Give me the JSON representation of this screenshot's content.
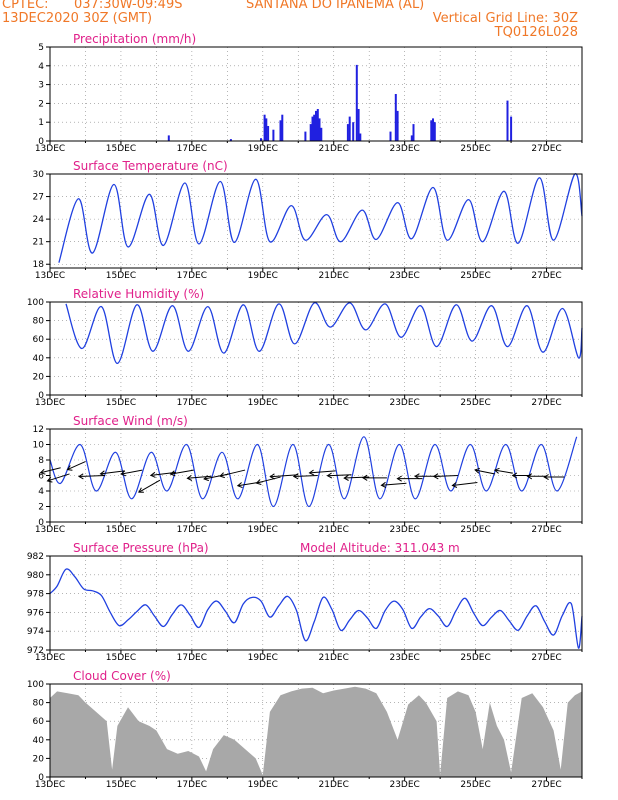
{
  "header": {
    "line1_left": "CPTEC:",
    "line1_coords": "037:30W-09:49S",
    "line1_place": "SANTANA DO IPANEMA (AL)",
    "line2_left": "13DEC2020 30Z (GMT)",
    "line2_right": "Vertical Grid Line: 30Z",
    "line3_right": "TQ0126L028"
  },
  "x_labels": [
    "13DEC",
    "15DEC",
    "17DEC",
    "19DEC",
    "21DEC",
    "23DEC",
    "25DEC",
    "27DEC"
  ],
  "colors": {
    "header": "#f07828",
    "title": "#e0208a",
    "series": "#2040e0",
    "bar": "#2020e0",
    "cloud": "#a8a8a8",
    "vector": "#000000"
  },
  "panels": [
    {
      "id": "precip",
      "title": "Precipitation (mm/h)",
      "extra": ""
    },
    {
      "id": "temp",
      "title": "Surface Temperature (nC)",
      "extra": ""
    },
    {
      "id": "rh",
      "title": "Relative Humidity (%)",
      "extra": ""
    },
    {
      "id": "wind",
      "title": "Surface Wind (m/s)",
      "extra": ""
    },
    {
      "id": "pres",
      "title": "Surface Pressure (hPa)",
      "extra": "Model Altitude: 311.043 m"
    },
    {
      "id": "cloud",
      "title": "Cloud Cover (%)",
      "extra": ""
    }
  ],
  "chart_data": [
    {
      "type": "bar",
      "title": "Precipitation (mm/h)",
      "ylim": [
        0,
        5
      ],
      "yticks": [
        0,
        1,
        2,
        3,
        4,
        5
      ],
      "x_unit": "day offset from 13DEC 00Z",
      "xlim": [
        0,
        15
      ],
      "points": [
        [
          3.35,
          0.3
        ],
        [
          5.1,
          0.1
        ],
        [
          5.95,
          0.15
        ],
        [
          6.05,
          1.4
        ],
        [
          6.1,
          1.2
        ],
        [
          6.15,
          0.8
        ],
        [
          6.3,
          0.6
        ],
        [
          6.5,
          1.1
        ],
        [
          6.55,
          1.4
        ],
        [
          7.2,
          0.5
        ],
        [
          7.35,
          0.9
        ],
        [
          7.4,
          1.3
        ],
        [
          7.45,
          1.4
        ],
        [
          7.5,
          1.6
        ],
        [
          7.55,
          1.7
        ],
        [
          7.6,
          1.2
        ],
        [
          7.65,
          0.7
        ],
        [
          8.4,
          0.9
        ],
        [
          8.45,
          1.3
        ],
        [
          8.55,
          1.0
        ],
        [
          8.65,
          4.05
        ],
        [
          8.7,
          1.7
        ],
        [
          8.75,
          0.4
        ],
        [
          9.6,
          0.5
        ],
        [
          9.75,
          2.5
        ],
        [
          9.8,
          1.6
        ],
        [
          10.2,
          0.3
        ],
        [
          10.25,
          0.9
        ],
        [
          10.75,
          1.1
        ],
        [
          10.8,
          1.2
        ],
        [
          10.85,
          1.0
        ],
        [
          12.9,
          2.15
        ],
        [
          13.0,
          1.3
        ]
      ]
    },
    {
      "type": "line",
      "title": "Surface Temperature (nC)",
      "ylim": [
        17.5,
        30
      ],
      "yticks": [
        18,
        21,
        24,
        27,
        30
      ],
      "minima": [
        [
          0.25,
          18.2
        ],
        [
          1.2,
          19.5
        ],
        [
          2.2,
          20.3
        ],
        [
          3.2,
          20.5
        ],
        [
          4.2,
          20.7
        ],
        [
          5.2,
          20.9
        ],
        [
          6.2,
          21.0
        ],
        [
          7.2,
          21.2
        ],
        [
          8.2,
          21.0
        ],
        [
          9.2,
          21.3
        ],
        [
          10.2,
          21.4
        ],
        [
          11.2,
          21.2
        ],
        [
          12.2,
          21.0
        ],
        [
          13.2,
          20.8
        ],
        [
          14.2,
          21.2
        ]
      ],
      "maxima": [
        [
          0.8,
          26.7
        ],
        [
          1.8,
          28.6
        ],
        [
          2.8,
          27.3
        ],
        [
          3.8,
          28.8
        ],
        [
          4.8,
          29.0
        ],
        [
          5.8,
          29.3
        ],
        [
          6.8,
          25.8
        ],
        [
          7.8,
          24.6
        ],
        [
          8.8,
          25.2
        ],
        [
          9.8,
          26.2
        ],
        [
          10.8,
          28.2
        ],
        [
          11.8,
          26.6
        ],
        [
          12.8,
          27.7
        ],
        [
          13.8,
          29.5
        ],
        [
          14.8,
          30.0
        ]
      ],
      "end": [
        15.0,
        24.4
      ]
    },
    {
      "type": "line",
      "title": "Relative Humidity (%)",
      "ylim": [
        0,
        100
      ],
      "yticks": [
        0,
        20,
        40,
        60,
        80,
        100
      ],
      "maxima": [
        [
          0.45,
          98
        ],
        [
          1.45,
          95
        ],
        [
          2.45,
          97
        ],
        [
          3.45,
          96
        ],
        [
          4.45,
          95
        ],
        [
          5.45,
          97
        ],
        [
          6.45,
          98
        ],
        [
          7.45,
          99
        ],
        [
          8.45,
          99
        ],
        [
          9.45,
          98
        ],
        [
          10.45,
          96
        ],
        [
          11.45,
          97
        ],
        [
          12.45,
          96
        ],
        [
          13.45,
          96
        ],
        [
          14.45,
          93
        ]
      ],
      "minima": [
        [
          0.9,
          50
        ],
        [
          1.9,
          34
        ],
        [
          2.9,
          47
        ],
        [
          3.9,
          47
        ],
        [
          4.9,
          45
        ],
        [
          5.9,
          47
        ],
        [
          6.9,
          55
        ],
        [
          7.9,
          73
        ],
        [
          8.9,
          70
        ],
        [
          9.9,
          62
        ],
        [
          10.9,
          52
        ],
        [
          11.9,
          58
        ],
        [
          12.9,
          52
        ],
        [
          13.9,
          46
        ],
        [
          14.9,
          40
        ]
      ],
      "end": [
        15.0,
        72
      ]
    },
    {
      "type": "line",
      "title": "Surface Wind (m/s)",
      "ylim": [
        0,
        12
      ],
      "yticks": [
        0,
        2,
        4,
        6,
        8,
        10,
        12
      ],
      "speed_minima": [
        [
          0.3,
          5
        ],
        [
          1.3,
          4
        ],
        [
          2.3,
          3
        ],
        [
          3.3,
          4
        ],
        [
          4.3,
          3
        ],
        [
          5.3,
          3
        ],
        [
          6.3,
          2
        ],
        [
          7.3,
          2
        ],
        [
          8.3,
          3
        ],
        [
          9.3,
          3
        ],
        [
          10.3,
          3
        ],
        [
          11.3,
          4
        ],
        [
          12.3,
          4
        ],
        [
          13.3,
          4
        ],
        [
          14.3,
          4
        ]
      ],
      "speed_maxima": [
        [
          0.85,
          10
        ],
        [
          1.85,
          9
        ],
        [
          2.85,
          9
        ],
        [
          3.85,
          10
        ],
        [
          4.85,
          9
        ],
        [
          5.85,
          10
        ],
        [
          6.85,
          10
        ],
        [
          7.85,
          10
        ],
        [
          8.85,
          11
        ],
        [
          9.85,
          10
        ],
        [
          10.85,
          10
        ],
        [
          11.85,
          10
        ],
        [
          12.85,
          10
        ],
        [
          13.85,
          10
        ],
        [
          14.85,
          11
        ]
      ],
      "vectors": [
        [
          0.3,
          7.0,
          -20,
          -5
        ],
        [
          0.55,
          6.2,
          -22,
          -7
        ],
        [
          1.0,
          7.8,
          -18,
          -8
        ],
        [
          1.55,
          6.0,
          -26,
          -1
        ],
        [
          2.1,
          6.6,
          -24,
          -3
        ],
        [
          2.6,
          6.7,
          -21,
          -4
        ],
        [
          3.1,
          5.4,
          -21,
          -12
        ],
        [
          3.55,
          6.4,
          -25,
          -3
        ],
        [
          4.05,
          6.7,
          -23,
          -4
        ],
        [
          4.55,
          5.9,
          -24,
          -2
        ],
        [
          5.05,
          6.2,
          -25,
          -5
        ],
        [
          5.5,
          6.7,
          -25,
          -6
        ],
        [
          6.0,
          5.2,
          -25,
          -4
        ],
        [
          6.5,
          5.8,
          -24,
          -6
        ],
        [
          7.0,
          6.1,
          -28,
          -2
        ],
        [
          7.55,
          6.0,
          -24,
          -1
        ],
        [
          8.05,
          6.6,
          -26,
          -2
        ],
        [
          8.5,
          6.1,
          -24,
          -1
        ],
        [
          9.0,
          5.8,
          -25,
          -1
        ],
        [
          9.5,
          5.7,
          -24,
          0
        ],
        [
          10.05,
          5.0,
          -25,
          -2
        ],
        [
          10.5,
          5.6,
          -25,
          0
        ],
        [
          11.0,
          5.9,
          -25,
          0
        ],
        [
          11.5,
          6.0,
          -24,
          -1
        ],
        [
          12.05,
          5.1,
          -25,
          -3
        ],
        [
          12.55,
          6.2,
          -20,
          4
        ],
        [
          13.05,
          6.3,
          -18,
          3
        ],
        [
          13.55,
          6.0,
          -18,
          0
        ],
        [
          14.0,
          5.9,
          -19,
          0
        ],
        [
          14.5,
          5.8,
          -20,
          0
        ]
      ]
    },
    {
      "type": "line",
      "title": "Surface Pressure (hPa)",
      "ylim": [
        972,
        982
      ],
      "yticks": [
        972,
        974,
        976,
        978,
        980,
        982
      ],
      "points": [
        [
          0.0,
          978.0
        ],
        [
          0.2,
          978.8
        ],
        [
          0.45,
          980.6
        ],
        [
          0.7,
          979.8
        ],
        [
          0.95,
          978.5
        ],
        [
          1.2,
          978.3
        ],
        [
          1.45,
          977.8
        ],
        [
          1.7,
          976.0
        ],
        [
          1.95,
          974.6
        ],
        [
          2.2,
          975.2
        ],
        [
          2.45,
          976.1
        ],
        [
          2.7,
          976.8
        ],
        [
          2.95,
          975.6
        ],
        [
          3.2,
          974.5
        ],
        [
          3.45,
          975.8
        ],
        [
          3.7,
          976.8
        ],
        [
          3.95,
          975.7
        ],
        [
          4.2,
          974.4
        ],
        [
          4.45,
          976.3
        ],
        [
          4.7,
          977.2
        ],
        [
          4.95,
          976.1
        ],
        [
          5.2,
          974.9
        ],
        [
          5.45,
          976.9
        ],
        [
          5.7,
          977.6
        ],
        [
          5.95,
          977.2
        ],
        [
          6.2,
          975.5
        ],
        [
          6.45,
          976.7
        ],
        [
          6.7,
          977.7
        ],
        [
          6.95,
          976.2
        ],
        [
          7.2,
          973.0
        ],
        [
          7.45,
          975.0
        ],
        [
          7.7,
          977.6
        ],
        [
          7.95,
          976.3
        ],
        [
          8.2,
          974.1
        ],
        [
          8.45,
          975.2
        ],
        [
          8.7,
          976.2
        ],
        [
          8.95,
          975.4
        ],
        [
          9.2,
          974.3
        ],
        [
          9.45,
          976.2
        ],
        [
          9.7,
          977.2
        ],
        [
          9.95,
          976.3
        ],
        [
          10.2,
          974.3
        ],
        [
          10.45,
          975.5
        ],
        [
          10.7,
          976.4
        ],
        [
          10.95,
          975.6
        ],
        [
          11.2,
          974.5
        ],
        [
          11.45,
          976.2
        ],
        [
          11.7,
          977.5
        ],
        [
          11.95,
          975.9
        ],
        [
          12.2,
          974.6
        ],
        [
          12.45,
          975.5
        ],
        [
          12.7,
          976.2
        ],
        [
          12.95,
          975.1
        ],
        [
          13.2,
          974.1
        ],
        [
          13.45,
          975.6
        ],
        [
          13.7,
          976.7
        ],
        [
          13.95,
          975.0
        ],
        [
          14.2,
          973.6
        ],
        [
          14.45,
          975.7
        ],
        [
          14.7,
          976.9
        ],
        [
          14.9,
          972.2
        ],
        [
          15.0,
          975.6
        ]
      ]
    },
    {
      "type": "area",
      "title": "Cloud Cover (%)",
      "ylim": [
        0,
        100
      ],
      "yticks": [
        0,
        20,
        40,
        60,
        80,
        100
      ],
      "points": [
        [
          0.0,
          85
        ],
        [
          0.2,
          92
        ],
        [
          0.5,
          90
        ],
        [
          0.8,
          88
        ],
        [
          1.0,
          80
        ],
        [
          1.3,
          70
        ],
        [
          1.6,
          60
        ],
        [
          1.75,
          8
        ],
        [
          1.9,
          55
        ],
        [
          2.2,
          75
        ],
        [
          2.5,
          60
        ],
        [
          2.8,
          55
        ],
        [
          3.0,
          50
        ],
        [
          3.3,
          30
        ],
        [
          3.6,
          25
        ],
        [
          3.9,
          28
        ],
        [
          4.2,
          22
        ],
        [
          4.4,
          6
        ],
        [
          4.6,
          30
        ],
        [
          4.9,
          45
        ],
        [
          5.2,
          40
        ],
        [
          5.5,
          30
        ],
        [
          5.8,
          20
        ],
        [
          6.0,
          2
        ],
        [
          6.2,
          70
        ],
        [
          6.5,
          88
        ],
        [
          6.8,
          92
        ],
        [
          7.1,
          95
        ],
        [
          7.4,
          96
        ],
        [
          7.7,
          90
        ],
        [
          8.0,
          93
        ],
        [
          8.3,
          95
        ],
        [
          8.6,
          97
        ],
        [
          8.9,
          95
        ],
        [
          9.2,
          90
        ],
        [
          9.5,
          70
        ],
        [
          9.8,
          40
        ],
        [
          10.1,
          78
        ],
        [
          10.4,
          88
        ],
        [
          10.6,
          80
        ],
        [
          10.9,
          60
        ],
        [
          11.0,
          2
        ],
        [
          11.2,
          85
        ],
        [
          11.5,
          92
        ],
        [
          11.8,
          88
        ],
        [
          12.0,
          70
        ],
        [
          12.2,
          30
        ],
        [
          12.4,
          80
        ],
        [
          12.6,
          55
        ],
        [
          12.8,
          40
        ],
        [
          13.0,
          5
        ],
        [
          13.3,
          85
        ],
        [
          13.6,
          90
        ],
        [
          13.9,
          75
        ],
        [
          14.2,
          50
        ],
        [
          14.4,
          8
        ],
        [
          14.6,
          80
        ],
        [
          14.8,
          88
        ],
        [
          15.0,
          92
        ]
      ]
    }
  ]
}
